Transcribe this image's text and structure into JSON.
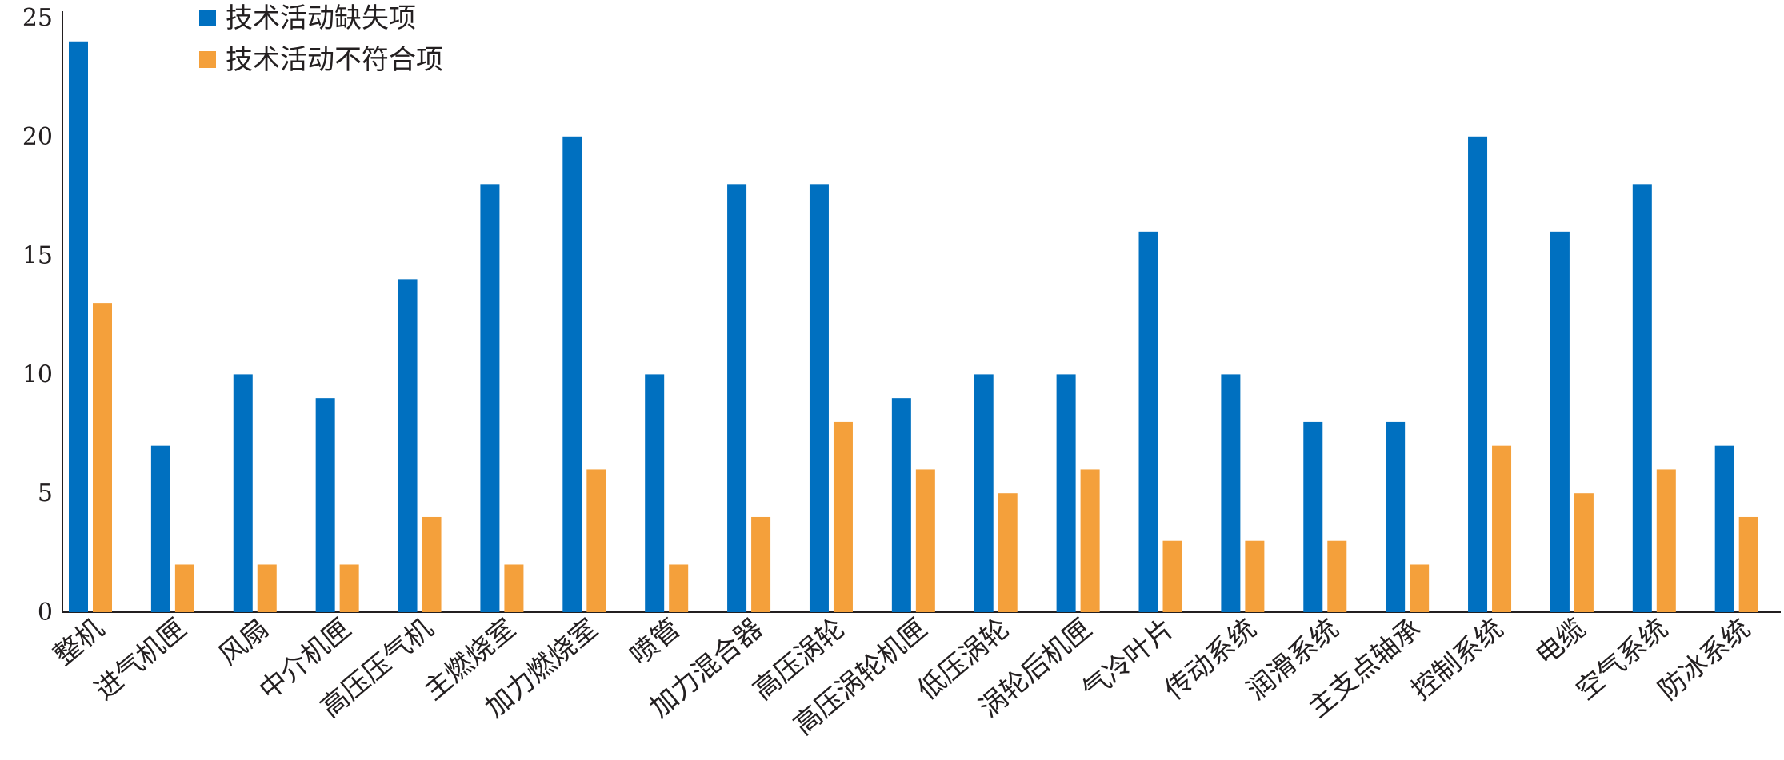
{
  "chart_data": {
    "type": "bar",
    "categories": [
      "整机",
      "进气机匣",
      "风扇",
      "中介机匣",
      "高压压气机",
      "主燃烧室",
      "加力燃烧室",
      "喷管",
      "加力混合器",
      "高压涡轮",
      "高压涡轮机匣",
      "低压涡轮",
      "涡轮后机匣",
      "气冷叶片",
      "传动系统",
      "润滑系统",
      "主支点轴承",
      "控制系统",
      "电缆",
      "空气系统",
      "防冰系统"
    ],
    "series": [
      {
        "name": "技术活动缺失项",
        "color": "#0070c0",
        "values": [
          24,
          7,
          10,
          9,
          14,
          18,
          20,
          10,
          18,
          18,
          9,
          10,
          10,
          16,
          10,
          8,
          8,
          20,
          16,
          18,
          7
        ]
      },
      {
        "name": "技术活动不符合项",
        "color": "#f4a03b",
        "values": [
          13,
          2,
          2,
          2,
          4,
          2,
          6,
          2,
          4,
          8,
          6,
          5,
          6,
          3,
          3,
          3,
          2,
          7,
          5,
          6,
          4
        ]
      }
    ],
    "ylim": [
      0,
      25
    ],
    "yticks": [
      "0",
      "5",
      "10",
      "15",
      "20",
      "25"
    ],
    "legend_position": "top-left",
    "grid": false
  }
}
